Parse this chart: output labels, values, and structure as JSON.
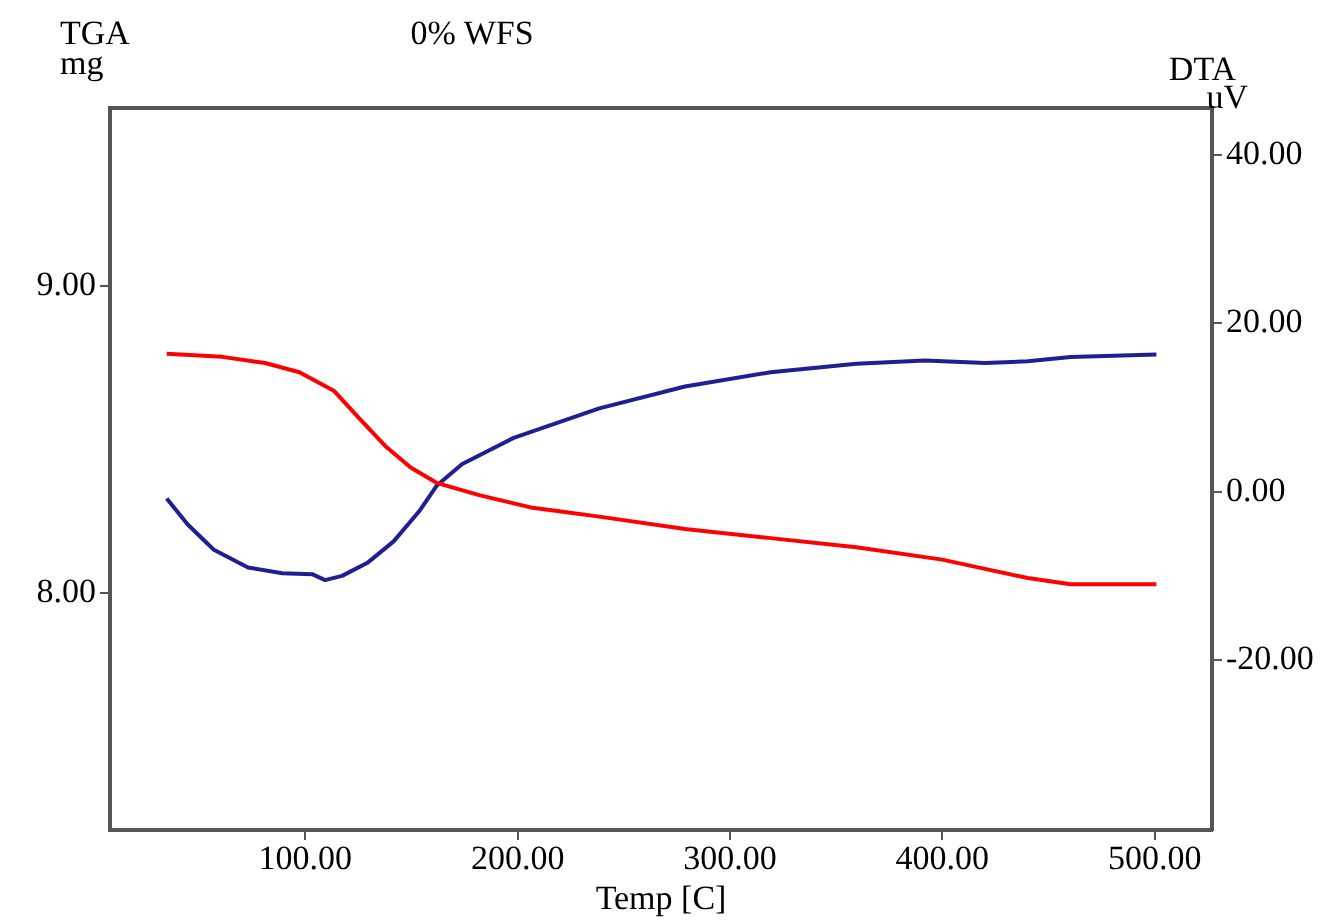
{
  "chart_data": {
    "type": "line",
    "title": "0% WFS",
    "xlabel": "Temp [C]",
    "ylabel": "TGA\nmg",
    "y2label": "DTA\nuV",
    "xlim": [
      8,
      527
    ],
    "xticks": [
      {
        "value": 100,
        "label": "100.00"
      },
      {
        "value": 200,
        "label": "200.00"
      },
      {
        "value": 300,
        "label": "300.00"
      },
      {
        "value": 400,
        "label": "400.00"
      },
      {
        "value": 500,
        "label": "500.00"
      }
    ],
    "ylim": [
      7.23,
      9.58
    ],
    "yticks": [
      {
        "value": 8,
        "label": "8.00"
      },
      {
        "value": 9,
        "label": "9.00"
      }
    ],
    "y2lim": [
      -40.2,
      45.6
    ],
    "y2ticks": [
      {
        "value": -20,
        "label": "-20.00"
      },
      {
        "value": 0,
        "label": "0.00"
      },
      {
        "value": 20,
        "label": "20.00"
      },
      {
        "value": 40,
        "label": "40.00"
      }
    ],
    "grid": false,
    "legend": false,
    "marker": "none",
    "line_style": "solid",
    "series": [
      {
        "color": "#ff0000",
        "x": [
          34.7,
          60.8,
          81.1,
          97.2,
          113.4,
          125.4,
          137.6,
          149.6,
          161.8,
          181.9,
          206.1,
          238.4,
          278.8,
          319.1,
          359.5,
          399.9,
          420.1,
          440.2,
          460.4,
          500.8
        ],
        "values": [
          8.78,
          8.77,
          8.75,
          8.72,
          8.66,
          8.57,
          8.48,
          8.41,
          8.36,
          8.32,
          8.28,
          8.25,
          8.21,
          8.18,
          8.15,
          8.11,
          8.08,
          8.05,
          8.03,
          8.03
        ]
      },
      {
        "color": "#1f1f93",
        "axis": "y2",
        "x": [
          34.7,
          44.6,
          56.9,
          73.0,
          89.1,
          103.2,
          109.3,
          117.3,
          129.5,
          141.6,
          153.7,
          161.8,
          173.9,
          198.1,
          238.4,
          278.8,
          319.1,
          359.5,
          391.8,
          420.1,
          440.2,
          460.4,
          500.8
        ],
        "values": [
          -0.8,
          -3.9,
          -6.9,
          -9.0,
          -9.7,
          -9.8,
          -10.5,
          -10.0,
          -8.4,
          -5.9,
          -2.3,
          0.7,
          3.3,
          6.4,
          9.9,
          12.5,
          14.2,
          15.2,
          15.6,
          15.3,
          15.5,
          16.0,
          16.3
        ]
      }
    ]
  }
}
